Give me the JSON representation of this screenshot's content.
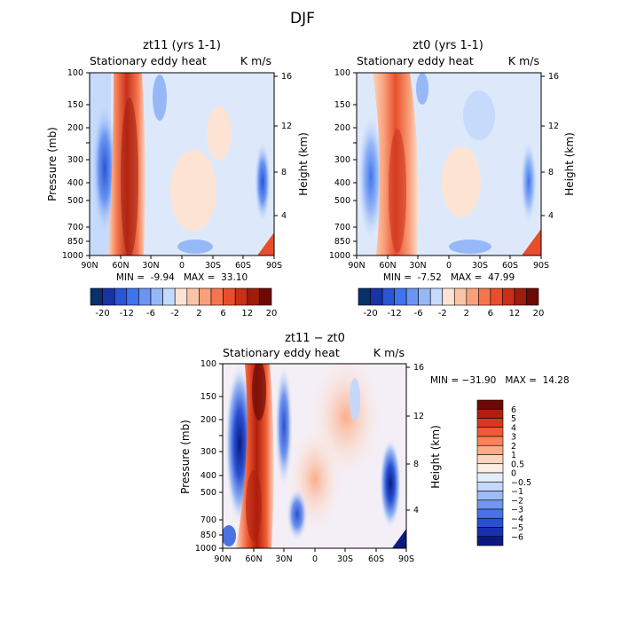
{
  "figure": {
    "title": "DJF"
  },
  "chart_data": [
    {
      "type": "heatmap",
      "title": "zt11 (yrs 1-1)",
      "subtitle_left": "Stationary eddy heat",
      "subtitle_right": "K m/s",
      "xlabel": "",
      "ylabel": "Pressure (mb)",
      "ylabel_right": "Height (km)",
      "x_ticks": [
        "90N",
        "60N",
        "30N",
        "0",
        "30S",
        "60S",
        "90S"
      ],
      "y_ticks": [
        "100",
        "150",
        "200",
        "300",
        "400",
        "500",
        "700",
        "850",
        "1000"
      ],
      "height_ticks": [
        "16",
        "12",
        "8",
        "4"
      ],
      "min_max_text": "MIN =  -9.94   MAX =  33.10",
      "min": -9.94,
      "max": 33.1,
      "colorbar": {
        "orientation": "horizontal",
        "colors": [
          "#08306b",
          "#1833a8",
          "#2a55d4",
          "#3f74ec",
          "#6a95f2",
          "#97b8f7",
          "#c6dafb",
          "#fde3d3",
          "#fbc4a8",
          "#f9a07a",
          "#f4764f",
          "#e84e2c",
          "#c8301a",
          "#9e1c0c",
          "#6b0a04"
        ],
        "labels": [
          "-20",
          "-12",
          "-6",
          "-2",
          "2",
          "6",
          "12",
          "20"
        ]
      }
    },
    {
      "type": "heatmap",
      "title": "zt0 (yrs 1-1)",
      "subtitle_left": "Stationary eddy heat",
      "subtitle_right": "K m/s",
      "xlabel": "",
      "ylabel": "",
      "ylabel_right": "Height (km)",
      "x_ticks": [
        "90N",
        "60N",
        "30N",
        "0",
        "30S",
        "60S",
        "90S"
      ],
      "y_ticks": [
        "100",
        "150",
        "200",
        "300",
        "400",
        "500",
        "700",
        "850",
        "1000"
      ],
      "height_ticks": [
        "16",
        "12",
        "8",
        "4"
      ],
      "min_max_text": "MIN =  -7.52   MAX =  47.99",
      "min": -7.52,
      "max": 47.99,
      "colorbar": {
        "orientation": "horizontal",
        "colors": [
          "#08306b",
          "#1833a8",
          "#2a55d4",
          "#3f74ec",
          "#6a95f2",
          "#97b8f7",
          "#c6dafb",
          "#fde3d3",
          "#fbc4a8",
          "#f9a07a",
          "#f4764f",
          "#e84e2c",
          "#c8301a",
          "#9e1c0c",
          "#6b0a04"
        ],
        "labels": [
          "-20",
          "-12",
          "-6",
          "-2",
          "2",
          "6",
          "12",
          "20"
        ]
      }
    },
    {
      "type": "heatmap",
      "title": "zt11 − zt0",
      "subtitle_left": "Stationary eddy heat",
      "subtitle_right": "K m/s",
      "xlabel": "",
      "ylabel": "Pressure (mb)",
      "ylabel_right": "Height (km)",
      "x_ticks": [
        "90N",
        "60N",
        "30N",
        "0",
        "30S",
        "60S",
        "90S"
      ],
      "y_ticks": [
        "100",
        "150",
        "200",
        "300",
        "400",
        "500",
        "700",
        "850",
        "1000"
      ],
      "height_ticks": [
        "16",
        "12",
        "8",
        "4"
      ],
      "min_max_text": "MIN = −31.90   MAX =  14.28",
      "min": -31.9,
      "max": 14.28,
      "colorbar": {
        "orientation": "vertical",
        "colors": [
          "#6b0a04",
          "#b01e0e",
          "#d6391d",
          "#ee5c34",
          "#f7845a",
          "#fbad8a",
          "#fdd6bf",
          "#fdeee4",
          "#e5edfb",
          "#c6d8fa",
          "#9dbcf5",
          "#7196ee",
          "#4a72e4",
          "#2a50d2",
          "#1830b0",
          "#0a1a80"
        ],
        "labels": [
          "6",
          "5",
          "4",
          "3",
          "2",
          "1",
          "0.5",
          "0",
          "−0.5",
          "−1",
          "−2",
          "−3",
          "−4",
          "−5",
          "−6"
        ]
      }
    }
  ]
}
